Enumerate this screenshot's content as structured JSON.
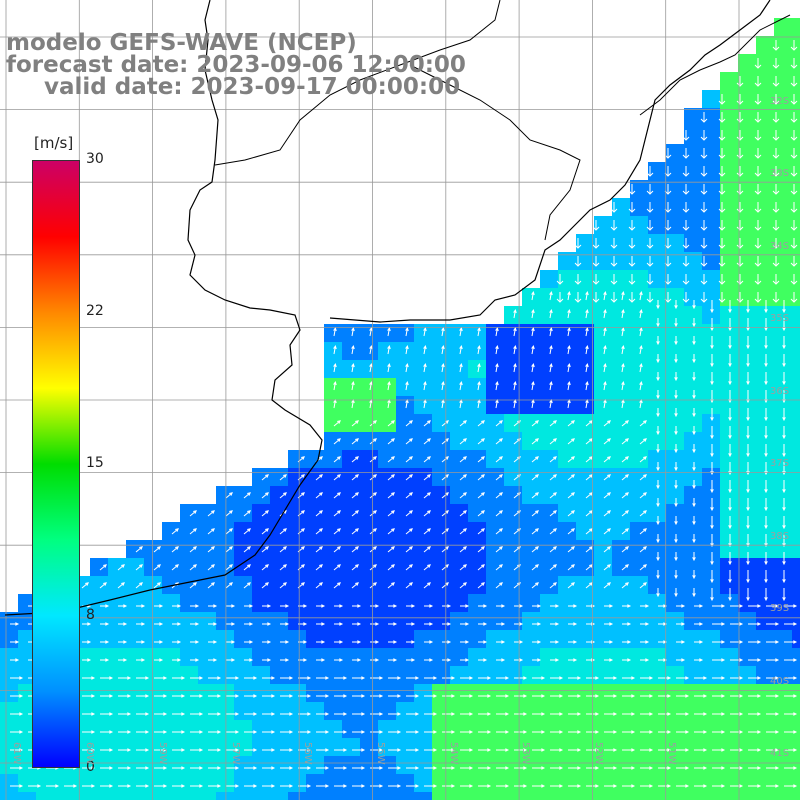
{
  "title": {
    "line1": "modelo GEFS-WAVE (NCEP)",
    "line2": "forecast date: 2023-09-06 12:00:00",
    "line3": "valid date: 2023-09-17 00:00:00"
  },
  "colorbar": {
    "unit": "[m/s]",
    "ticks": [
      "30",
      "22",
      "15",
      "8",
      "0"
    ],
    "colors": [
      "#0000ff",
      "#0090ff",
      "#00e8ff",
      "#00ff80",
      "#00dd00",
      "#ffff00",
      "#ff8800",
      "#ff0000",
      "#cc0066"
    ]
  },
  "lat_labels": [
    "32S",
    "33S",
    "34S",
    "35S",
    "36S",
    "37S",
    "38S",
    "39S",
    "40S",
    "41S"
  ],
  "lon_labels": [
    "61W",
    "60W",
    "59W",
    "57W",
    "56W",
    "55W",
    "54W",
    "53W",
    "52W",
    "51W"
  ],
  "grid_color": "#999999",
  "ocean_palette": {
    "calm": "#0040ff",
    "low": "#0080ff",
    "medium": "#00c0ff",
    "high": "#00e8e0",
    "strong": "#40ff60"
  }
}
